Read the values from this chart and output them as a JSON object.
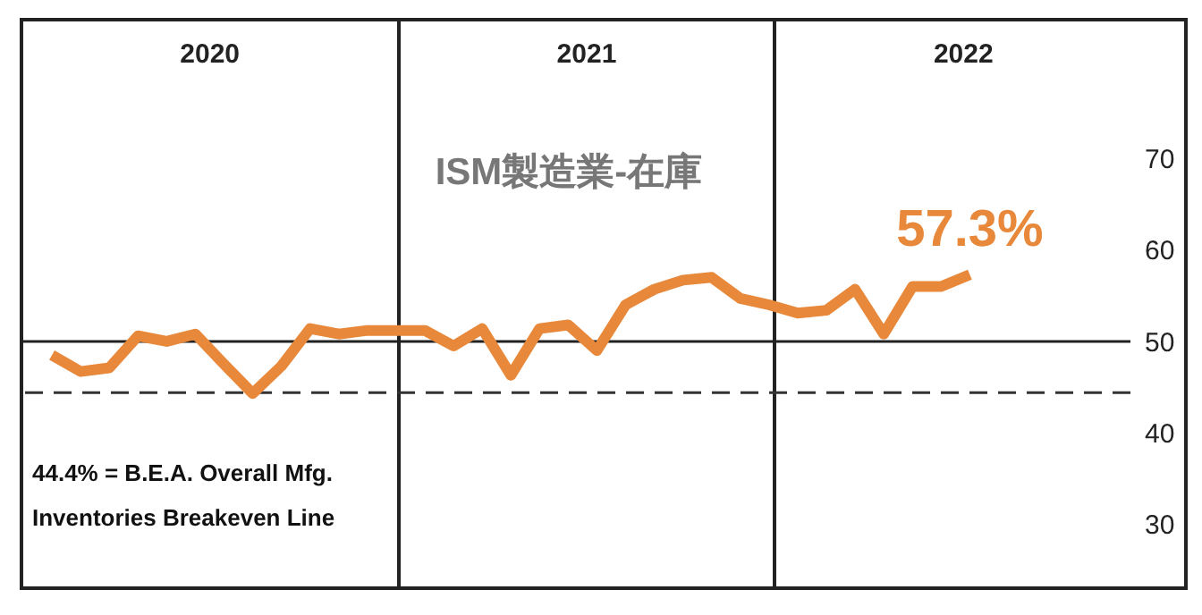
{
  "chart_data": {
    "type": "line",
    "title": "ISM製造業-在庫",
    "categories": [
      null,
      null,
      null,
      null,
      null,
      null,
      null,
      null,
      null,
      null,
      null,
      null,
      null,
      null,
      null,
      null,
      null,
      null,
      null,
      null,
      null,
      null,
      null,
      null,
      null,
      null,
      null,
      null,
      null,
      null,
      null,
      null,
      null
    ],
    "series": [
      {
        "color": "#e8883a",
        "values": [
          48.5,
          46.7,
          47.1,
          50.6,
          50.0,
          50.8,
          47.5,
          44.3,
          47.3,
          51.4,
          50.8,
          51.2,
          51.2,
          51.2,
          49.5,
          51.4,
          46.3,
          51.4,
          51.8,
          49.0,
          54.0,
          55.7,
          56.7,
          57.0,
          54.7,
          54.0,
          53.1,
          53.4,
          55.7,
          50.8,
          56.0,
          56.0,
          57.3
        ]
      }
    ],
    "ylim": [
      23,
      85
    ],
    "yticks": [
      30,
      40,
      50,
      60,
      70
    ],
    "tick_labels": "y",
    "marker": "none",
    "line_style": "solid",
    "ref_lines": [
      {
        "axis": "y",
        "value": 50,
        "line_style": "solid",
        "color": "#222222"
      },
      {
        "axis": "y",
        "value": 44.4,
        "line_style": "dashed",
        "color": "#333333",
        "label": "44.4% = B.E.A. Overall Mfg. Inventories Breakeven Line"
      }
    ],
    "annotations": [
      "2020",
      "2021",
      "2022",
      {
        "text": "57.3%",
        "y": 57.3
      }
    ]
  }
}
